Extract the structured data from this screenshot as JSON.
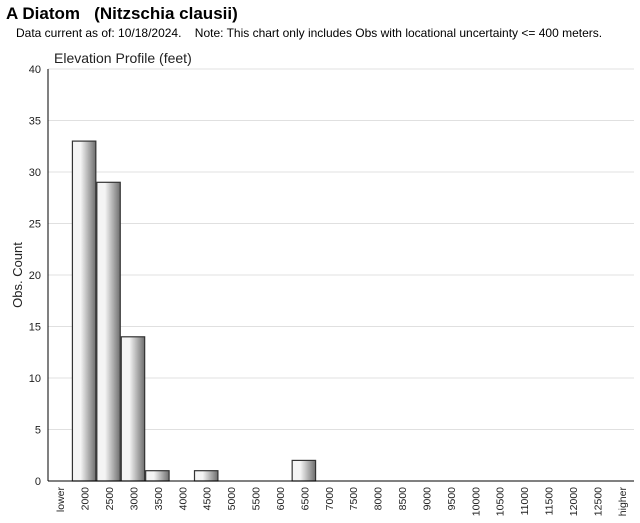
{
  "page": {
    "title": "A Diatom   (Nitzschia clausii)",
    "subtitle": "Data current as of: 10/18/2024.    Note: This chart only includes Obs with locational uncertainty <= 400 meters."
  },
  "chart_data": {
    "type": "bar",
    "title": "Elevation Profile (feet)",
    "ylabel": "Obs. Count",
    "xlabel": "",
    "ylim": [
      0,
      40
    ],
    "yticks": [
      0,
      5,
      10,
      15,
      20,
      25,
      30,
      35,
      40
    ],
    "grid": true,
    "categories": [
      "lower",
      "2000",
      "2500",
      "3000",
      "3500",
      "4000",
      "4500",
      "5000",
      "5500",
      "6000",
      "6500",
      "7000",
      "7500",
      "8000",
      "8500",
      "9000",
      "9500",
      "10000",
      "10500",
      "11000",
      "11500",
      "12000",
      "12500",
      "higher"
    ],
    "values": [
      0,
      33,
      29,
      14,
      1,
      0,
      1,
      0,
      0,
      0,
      2,
      0,
      0,
      0,
      0,
      0,
      0,
      0,
      0,
      0,
      0,
      0,
      0,
      0
    ],
    "colors": {
      "bar_light": "#f4f4f4",
      "bar_dark": "#6e6e6e",
      "bar_stroke": "#333333",
      "grid": "#e0e0e0",
      "axis": "#000000"
    }
  }
}
